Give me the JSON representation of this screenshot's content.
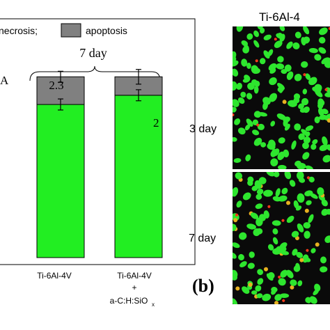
{
  "chart_data": {
    "type": "bar",
    "stacked": true,
    "categories": [
      "Ti-6Al-4V",
      "Ti-6Al-4V + a-C:H:SiOx"
    ],
    "category_lines": [
      [
        "Ti-6Al-4V"
      ],
      [
        "Ti-6Al-4V",
        "+",
        "a-C:H:SiO",
        "x"
      ]
    ],
    "series": [
      {
        "name": "",
        "values": [
          83,
          88
        ],
        "color": "#22ee22"
      },
      {
        "name": "apoptosis",
        "values": [
          15,
          10
        ],
        "color": "#808080"
      }
    ],
    "errors": {
      "base": [
        3,
        3
      ],
      "top": [
        3,
        4
      ]
    },
    "legend": {
      "necrosis": "necrosis;",
      "apoptosis": "apoptosis",
      "placement": "top"
    },
    "group_label": "7 day",
    "bar_annotations": [
      "2.3",
      "2"
    ],
    "ylim": [
      0,
      100
    ],
    "grid": false
  },
  "panel_b": {
    "label": "(b)",
    "column_title": "Ti-6Al-4",
    "row_labels": [
      "3 day",
      "7 day"
    ],
    "colors": {
      "background": "#0a0a0a",
      "live": "#2ee62e",
      "dead": "#ff3a1a",
      "mixed": "#e6b020"
    }
  },
  "panel_a": {
    "label_fragment": "A"
  }
}
